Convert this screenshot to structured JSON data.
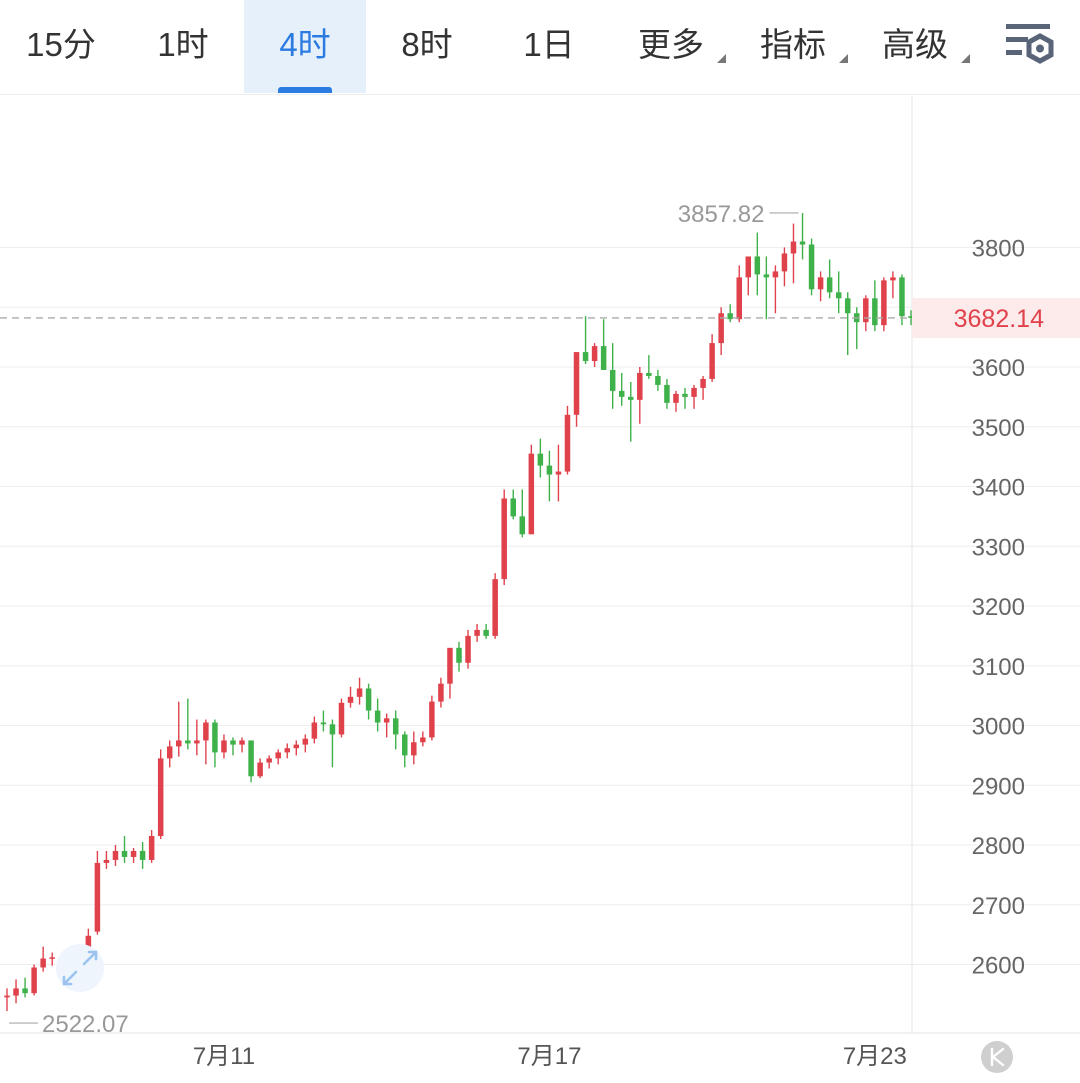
{
  "toolbar": {
    "tabs": [
      {
        "label": "15分",
        "active": false,
        "dropdown": false
      },
      {
        "label": "1时",
        "active": false,
        "dropdown": false
      },
      {
        "label": "4时",
        "active": true,
        "dropdown": false
      },
      {
        "label": "8时",
        "active": false,
        "dropdown": false
      },
      {
        "label": "1日",
        "active": false,
        "dropdown": false
      },
      {
        "label": "更多",
        "active": false,
        "dropdown": true
      },
      {
        "label": "指标",
        "active": false,
        "dropdown": true
      },
      {
        "label": "高级",
        "active": false,
        "dropdown": true
      }
    ],
    "settings_icon": "chart-settings-icon"
  },
  "colors": {
    "up": "#e0424c",
    "down": "#3fb14a",
    "accent": "#2b7be0",
    "grid": "#eeeeee",
    "last_price_bg": "#fdeaea"
  },
  "chart_data": {
    "type": "candlestick",
    "interval": "4时",
    "y_ticks": [
      2600,
      2700,
      2800,
      2900,
      3000,
      3100,
      3200,
      3300,
      3400,
      3500,
      3600,
      3800
    ],
    "x_ticks": [
      {
        "label": "7月11",
        "index": 24
      },
      {
        "label": "7月17",
        "index": 60
      },
      {
        "label": "7月23",
        "index": 96
      }
    ],
    "max_marker": {
      "label": "3857.82",
      "value": 3857.82,
      "index": 88
    },
    "min_marker": {
      "label": "2522.07",
      "value": 2522.07,
      "index": 0
    },
    "last_price": {
      "label": "3682.14",
      "value": 3682.14
    },
    "candles": [
      [
        2545,
        2560,
        2522.07,
        2548
      ],
      [
        2548,
        2575,
        2535,
        2560
      ],
      [
        2560,
        2578,
        2545,
        2552
      ],
      [
        2552,
        2600,
        2548,
        2595
      ],
      [
        2595,
        2630,
        2588,
        2610
      ],
      [
        2610,
        2620,
        2598,
        2612
      ],
      [
        2612,
        2618,
        2588,
        2596
      ],
      [
        2596,
        2625,
        2590,
        2615
      ],
      [
        2615,
        2620,
        2598,
        2620
      ],
      [
        2620,
        2660,
        2610,
        2648
      ],
      [
        2655,
        2790,
        2650,
        2770
      ],
      [
        2770,
        2790,
        2760,
        2775
      ],
      [
        2775,
        2800,
        2765,
        2790
      ],
      [
        2790,
        2815,
        2770,
        2780
      ],
      [
        2780,
        2795,
        2770,
        2790
      ],
      [
        2790,
        2805,
        2760,
        2775
      ],
      [
        2775,
        2825,
        2770,
        2815
      ],
      [
        2815,
        2960,
        2810,
        2945
      ],
      [
        2945,
        2975,
        2930,
        2965
      ],
      [
        2965,
        3040,
        2948,
        2975
      ],
      [
        2975,
        3045,
        2960,
        2970
      ],
      [
        2970,
        3010,
        2950,
        2975
      ],
      [
        2975,
        3010,
        2935,
        3005
      ],
      [
        3005,
        3010,
        2930,
        2955
      ],
      [
        2955,
        2985,
        2945,
        2975
      ],
      [
        2975,
        2980,
        2950,
        2968
      ],
      [
        2968,
        2980,
        2955,
        2975
      ],
      [
        2975,
        2975,
        2905,
        2915
      ],
      [
        2915,
        2945,
        2912,
        2938
      ],
      [
        2938,
        2950,
        2928,
        2945
      ],
      [
        2945,
        2960,
        2935,
        2955
      ],
      [
        2955,
        2970,
        2945,
        2962
      ],
      [
        2962,
        2975,
        2950,
        2968
      ],
      [
        2968,
        2985,
        2955,
        2978
      ],
      [
        2978,
        3015,
        2970,
        3005
      ],
      [
        3005,
        3025,
        2990,
        3002
      ],
      [
        3002,
        3010,
        2930,
        2985
      ],
      [
        2985,
        3045,
        2980,
        3038
      ],
      [
        3038,
        3065,
        3030,
        3048
      ],
      [
        3048,
        3080,
        3035,
        3062
      ],
      [
        3062,
        3070,
        3010,
        3025
      ],
      [
        3025,
        3045,
        2990,
        3005
      ],
      [
        3005,
        3020,
        2980,
        3012
      ],
      [
        3012,
        3025,
        2960,
        2985
      ],
      [
        2985,
        2990,
        2930,
        2950
      ],
      [
        2950,
        2990,
        2935,
        2972
      ],
      [
        2972,
        2990,
        2965,
        2980
      ],
      [
        2980,
        3050,
        2975,
        3040
      ],
      [
        3040,
        3080,
        3030,
        3070
      ],
      [
        3070,
        3120,
        3045,
        3130
      ],
      [
        3130,
        3140,
        3090,
        3105
      ],
      [
        3105,
        3160,
        3095,
        3150
      ],
      [
        3150,
        3170,
        3140,
        3160
      ],
      [
        3160,
        3170,
        3145,
        3150
      ],
      [
        3150,
        3255,
        3145,
        3245
      ],
      [
        3245,
        3395,
        3235,
        3380
      ],
      [
        3380,
        3395,
        3345,
        3350
      ],
      [
        3350,
        3395,
        3315,
        3320
      ],
      [
        3320,
        3470,
        3325,
        3455
      ],
      [
        3455,
        3480,
        3415,
        3435
      ],
      [
        3435,
        3460,
        3375,
        3420
      ],
      [
        3420,
        3470,
        3375,
        3425
      ],
      [
        3425,
        3535,
        3420,
        3520
      ],
      [
        3520,
        3620,
        3500,
        3625
      ],
      [
        3625,
        3685,
        3605,
        3610
      ],
      [
        3610,
        3640,
        3600,
        3635
      ],
      [
        3635,
        3680,
        3595,
        3595
      ],
      [
        3595,
        3640,
        3530,
        3560
      ],
      [
        3560,
        3590,
        3535,
        3550
      ],
      [
        3550,
        3575,
        3475,
        3545
      ],
      [
        3545,
        3600,
        3505,
        3590
      ],
      [
        3590,
        3620,
        3580,
        3585
      ],
      [
        3585,
        3595,
        3560,
        3570
      ],
      [
        3570,
        3580,
        3530,
        3540
      ],
      [
        3540,
        3560,
        3525,
        3555
      ],
      [
        3555,
        3565,
        3530,
        3550
      ],
      [
        3550,
        3570,
        3530,
        3565
      ],
      [
        3565,
        3585,
        3545,
        3580
      ],
      [
        3580,
        3655,
        3575,
        3640
      ],
      [
        3640,
        3700,
        3620,
        3690
      ],
      [
        3690,
        3705,
        3675,
        3680
      ],
      [
        3680,
        3770,
        3675,
        3750
      ],
      [
        3750,
        3775,
        3720,
        3785
      ],
      [
        3785,
        3825,
        3720,
        3755
      ],
      [
        3755,
        3785,
        3680,
        3750
      ],
      [
        3750,
        3770,
        3690,
        3760
      ],
      [
        3760,
        3800,
        3735,
        3790
      ],
      [
        3790,
        3840,
        3740,
        3810
      ],
      [
        3810,
        3857.82,
        3780,
        3805
      ],
      [
        3805,
        3815,
        3720,
        3730
      ],
      [
        3730,
        3760,
        3710,
        3750
      ],
      [
        3750,
        3780,
        3715,
        3725
      ],
      [
        3725,
        3760,
        3690,
        3715
      ],
      [
        3715,
        3725,
        3620,
        3690
      ],
      [
        3690,
        3700,
        3630,
        3675
      ],
      [
        3675,
        3720,
        3660,
        3715
      ],
      [
        3715,
        3745,
        3660,
        3670
      ],
      [
        3670,
        3750,
        3660,
        3745
      ],
      [
        3745,
        3760,
        3715,
        3750
      ],
      [
        3750,
        3755,
        3670,
        3685
      ],
      [
        3685,
        3695,
        3670,
        3682.14
      ]
    ]
  }
}
